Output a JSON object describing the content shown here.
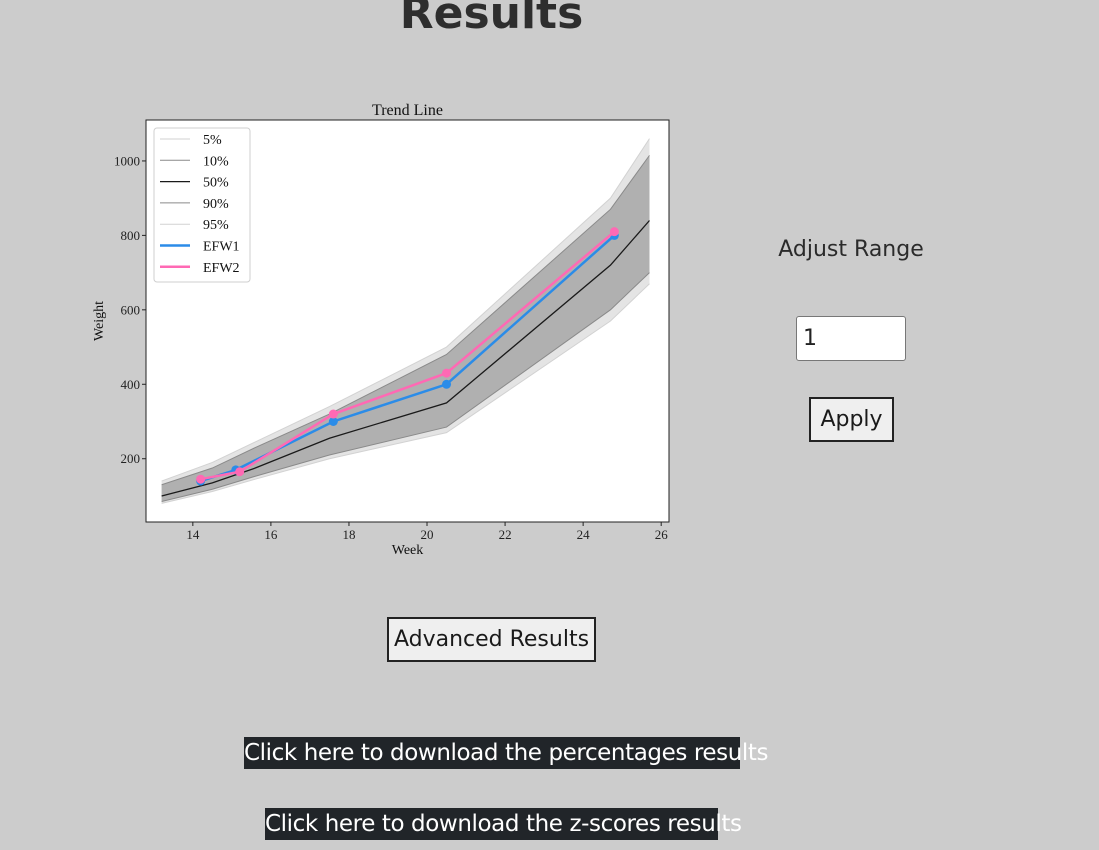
{
  "page": {
    "title": "Results"
  },
  "controls": {
    "adjust_label": "Adjust Range",
    "range_value": "1",
    "apply_label": "Apply",
    "advanced_label": "Advanced Results"
  },
  "downloads": {
    "percentages_label": "Click here to download the percentages results",
    "zscores_label": "Click here to download the z-scores results"
  },
  "colors": {
    "background": "#cccccc",
    "efw1": "#2b8ce8",
    "efw2": "#ff69b4",
    "band_outer": "#e4e4e4",
    "band_inner": "#b0b0b0",
    "median": "#1a1a1a",
    "button_bg": "#efefef",
    "link_bg": "#212529"
  },
  "chart_data": {
    "type": "line",
    "title": "Trend Line",
    "xlabel": "Week",
    "ylabel": "Weight",
    "xlim": [
      12.8,
      26.2
    ],
    "ylim": [
      30,
      1110
    ],
    "xticks": [
      14,
      16,
      18,
      20,
      22,
      24,
      26
    ],
    "yticks": [
      200,
      400,
      600,
      800,
      1000
    ],
    "grid": false,
    "legend_position": "top-left",
    "percentile_x": [
      13.2,
      14.5,
      15.6,
      17.5,
      20.5,
      24.7,
      25.7
    ],
    "percentiles": [
      {
        "name": "5%",
        "values": [
          80,
          112,
          145,
          200,
          270,
          570,
          670
        ]
      },
      {
        "name": "10%",
        "values": [
          85,
          118,
          153,
          210,
          285,
          600,
          700
        ]
      },
      {
        "name": "50%",
        "values": [
          100,
          135,
          175,
          255,
          350,
          720,
          840
        ]
      },
      {
        "name": "90%",
        "values": [
          130,
          175,
          230,
          320,
          480,
          870,
          1015
        ]
      },
      {
        "name": "95%",
        "values": [
          140,
          190,
          245,
          340,
          500,
          900,
          1060
        ]
      }
    ],
    "series": [
      {
        "name": "EFW1",
        "x": [
          14.2,
          15.1,
          17.6,
          20.5,
          24.8
        ],
        "values": [
          140,
          170,
          300,
          400,
          800
        ]
      },
      {
        "name": "EFW2",
        "x": [
          14.2,
          15.2,
          17.6,
          20.5,
          24.8
        ],
        "values": [
          145,
          165,
          320,
          430,
          810
        ]
      }
    ]
  }
}
